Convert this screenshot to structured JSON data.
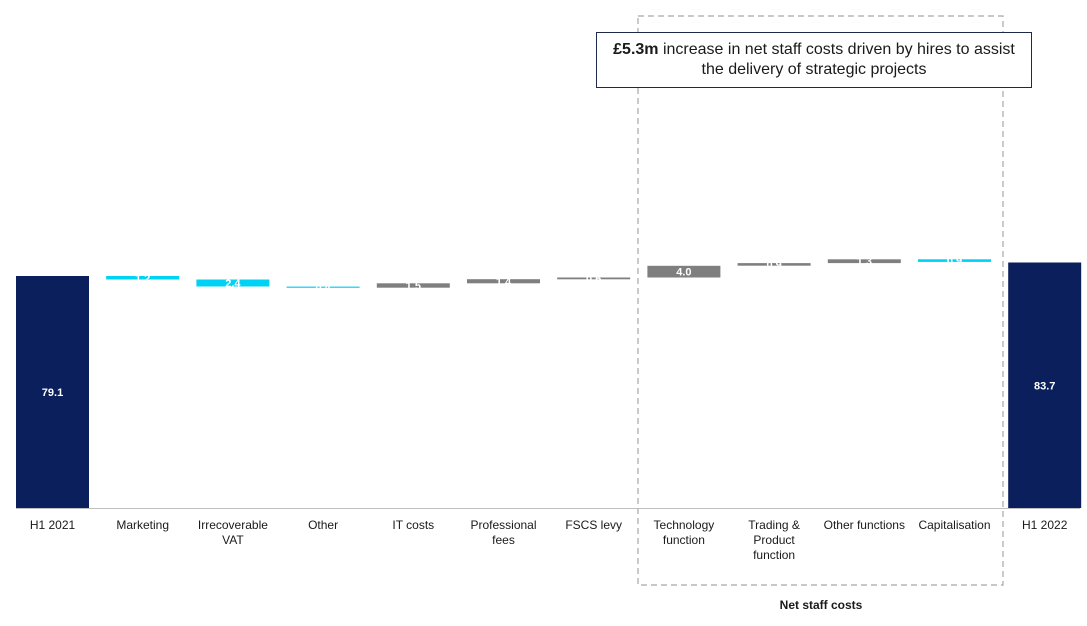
{
  "chart_data": {
    "type": "waterfall",
    "unit": "£m",
    "categories": [
      "H1 2021",
      "Marketing",
      "Irrecoverable VAT",
      "Other",
      "IT costs",
      "Professional fees",
      "FSCS levy",
      "Technology function",
      "Trading & Product function",
      "Other functions",
      "Capitalisation",
      "H1 2022"
    ],
    "category_lines": [
      [
        "H1 2021"
      ],
      [
        "Marketing"
      ],
      [
        "Irrecoverable",
        "VAT"
      ],
      [
        "Other"
      ],
      [
        "IT costs"
      ],
      [
        "Professional",
        "fees"
      ],
      [
        "FSCS levy"
      ],
      [
        "Technology",
        "function"
      ],
      [
        "Trading &",
        "Product",
        "function"
      ],
      [
        "Other functions"
      ],
      [
        "Capitalisation"
      ],
      [
        "H1 2022"
      ]
    ],
    "steps": [
      {
        "label": "79.1",
        "value": 79.1,
        "kind": "total"
      },
      {
        "label": "1.2",
        "value": -1.2,
        "kind": "decrease"
      },
      {
        "label": "2.4",
        "value": -2.4,
        "kind": "decrease"
      },
      {
        "label": "0.4",
        "value": -0.4,
        "kind": "decrease"
      },
      {
        "label": "1.5",
        "value": 1.5,
        "kind": "increase"
      },
      {
        "label": "1.4",
        "value": 1.4,
        "kind": "increase"
      },
      {
        "label": "0.6",
        "value": 0.6,
        "kind": "increase"
      },
      {
        "label": "4.0",
        "value": 4.0,
        "kind": "increase"
      },
      {
        "label": "0.9",
        "value": 0.9,
        "kind": "increase"
      },
      {
        "label": "1.3",
        "value": 1.3,
        "kind": "increase"
      },
      {
        "label": "0.9",
        "value": -0.9,
        "kind": "decrease"
      },
      {
        "label": "83.7",
        "value": 83.7,
        "kind": "total"
      }
    ],
    "colors": {
      "total": "#0a1f5c",
      "increase": "#7f7f7f",
      "decrease": "#00d2f5",
      "axis": "#bfbfbf",
      "group_border": "#a6a6a6"
    },
    "y_axis_shown": false,
    "grid": false,
    "annotation": {
      "highlight": "£5.3m",
      "text": " increase in net staff costs driven by hires to assist the delivery of strategic projects"
    },
    "group": {
      "label": "Net staff costs",
      "members": [
        "Technology function",
        "Trading & Product function",
        "Other functions",
        "Capitalisation"
      ]
    }
  }
}
